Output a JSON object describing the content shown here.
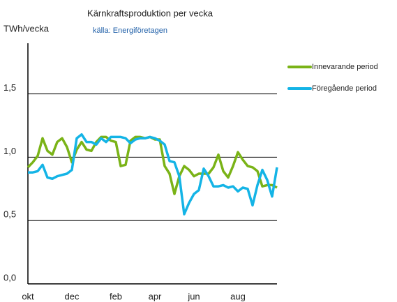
{
  "chart_data": {
    "type": "line",
    "title": "Kärnkraftsproduktion per vecka",
    "subtitle": "källa: Energiföretagen",
    "y_label": "TWh/vecka",
    "categories": [
      "okt",
      null,
      null,
      null,
      null,
      null,
      null,
      null,
      null,
      "dec",
      null,
      null,
      null,
      null,
      null,
      null,
      null,
      null,
      "feb",
      null,
      null,
      null,
      null,
      null,
      null,
      null,
      "apr",
      null,
      null,
      null,
      null,
      null,
      null,
      null,
      "jun",
      null,
      null,
      null,
      null,
      null,
      null,
      null,
      null,
      "aug",
      null,
      null,
      null,
      null,
      null,
      null,
      null,
      null
    ],
    "series": [
      {
        "name": "Innevarande period",
        "color": "#7ab317",
        "values": [
          0.92,
          0.96,
          1.01,
          1.15,
          1.05,
          1.02,
          1.12,
          1.15,
          1.08,
          0.96,
          1.06,
          1.12,
          1.06,
          1.05,
          1.12,
          1.16,
          1.16,
          1.13,
          1.12,
          0.93,
          0.94,
          1.13,
          1.16,
          1.16,
          1.15,
          1.16,
          1.14,
          1.14,
          0.93,
          0.87,
          0.71,
          0.85,
          0.93,
          0.9,
          0.85,
          0.87,
          0.87,
          0.87,
          0.92,
          1.02,
          0.89,
          0.84,
          0.93,
          1.04,
          0.98,
          0.93,
          0.92,
          0.89,
          0.77,
          0.78,
          0.78,
          0.76
        ]
      },
      {
        "name": "Föregående period",
        "color": "#14b4e6",
        "values": [
          0.88,
          0.88,
          0.89,
          0.94,
          0.84,
          0.83,
          0.85,
          0.86,
          0.87,
          0.9,
          1.15,
          1.18,
          1.12,
          1.12,
          1.1,
          1.15,
          1.12,
          1.16,
          1.16,
          1.16,
          1.15,
          1.11,
          1.14,
          1.15,
          1.15,
          1.16,
          1.15,
          1.13,
          1.1,
          0.97,
          0.96,
          0.85,
          0.55,
          0.64,
          0.71,
          0.74,
          0.91,
          0.85,
          0.77,
          0.77,
          0.78,
          0.76,
          0.77,
          0.73,
          0.76,
          0.75,
          0.62,
          0.78,
          0.9,
          0.82,
          0.69,
          0.92
        ]
      }
    ],
    "ylim": [
      0,
      1.9
    ],
    "yticks": [
      {
        "value": 0,
        "label": "0,0"
      },
      {
        "value": 0.5,
        "label": "0,5"
      },
      {
        "value": 1,
        "label": "1,0"
      },
      {
        "value": 1.5,
        "label": "1,5"
      }
    ],
    "grid": true,
    "legend": "right"
  }
}
